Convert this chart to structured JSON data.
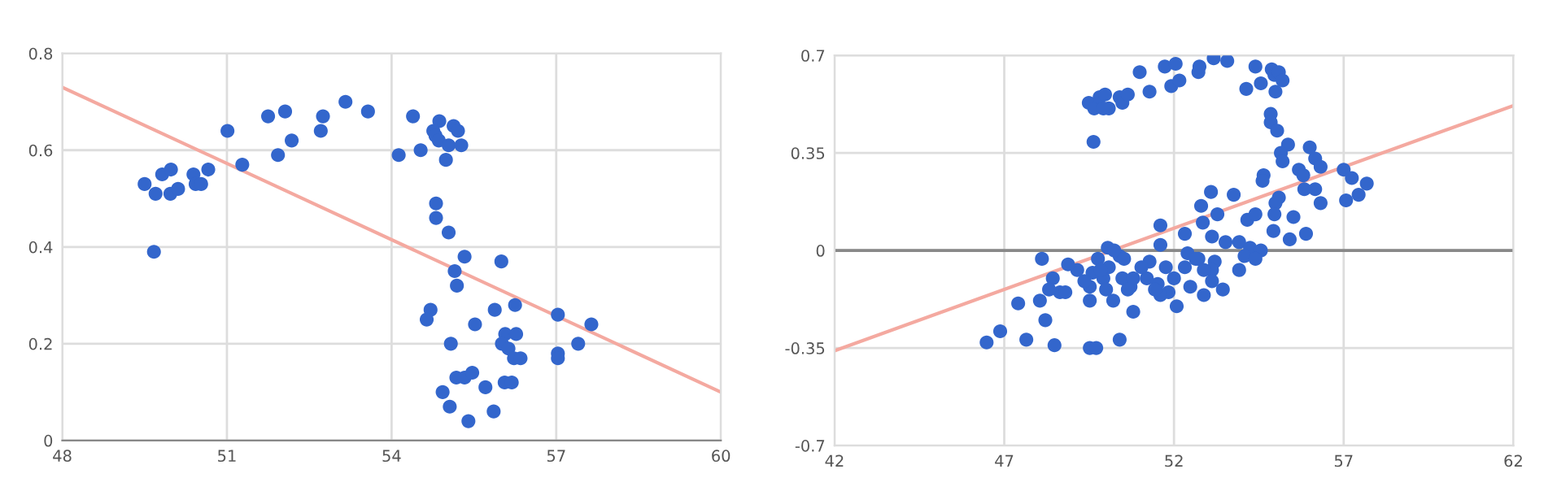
{
  "chart_data": [
    {
      "type": "scatter",
      "xlim": [
        48,
        60
      ],
      "xticks": [
        48,
        51,
        54,
        57,
        60
      ],
      "ylim": [
        0,
        0.8
      ],
      "yticks": [
        0,
        0.2,
        0.4,
        0.6,
        0.8
      ],
      "grid": true,
      "marker": "circle",
      "legend": false,
      "series": [
        {
          "color": "#3366cc",
          "x": [
            49.5,
            49.7,
            49.82,
            49.98,
            49.97,
            50.11,
            50.39,
            50.43,
            50.53,
            50.66,
            49.67,
            51.01,
            51.28,
            51.75,
            52.06,
            52.18,
            51.93,
            52.71,
            52.75,
            53.16,
            53.57,
            54.13,
            54.39,
            54.53,
            54.87,
            54.76,
            54.8,
            54.86,
            55.13,
            55.21,
            55.04,
            55.27,
            54.99,
            54.81,
            54.81,
            55.04,
            55.33,
            55.15,
            55.19,
            56.0,
            54.71,
            54.64,
            55.88,
            56.25,
            55.52,
            55.08,
            56.07,
            56.27,
            56.01,
            56.13,
            56.23,
            56.35,
            57.03,
            57.64,
            57.4,
            57.03,
            57.03,
            55.18,
            55.33,
            55.47,
            55.71,
            54.93,
            56.06,
            56.19,
            55.06,
            55.86,
            55.4
          ],
          "values": [
            0.53,
            0.51,
            0.55,
            0.56,
            0.51,
            0.52,
            0.55,
            0.53,
            0.53,
            0.56,
            0.39,
            0.64,
            0.57,
            0.67,
            0.68,
            0.62,
            0.59,
            0.64,
            0.67,
            0.7,
            0.68,
            0.59,
            0.67,
            0.6,
            0.66,
            0.64,
            0.63,
            0.62,
            0.65,
            0.64,
            0.61,
            0.61,
            0.58,
            0.49,
            0.46,
            0.43,
            0.38,
            0.35,
            0.32,
            0.37,
            0.27,
            0.25,
            0.27,
            0.28,
            0.24,
            0.2,
            0.22,
            0.22,
            0.2,
            0.19,
            0.17,
            0.17,
            0.26,
            0.24,
            0.2,
            0.18,
            0.17,
            0.13,
            0.13,
            0.14,
            0.11,
            0.1,
            0.12,
            0.12,
            0.07,
            0.06,
            0.04
          ]
        },
        {
          "type": "line",
          "color": "#f4a9a0",
          "marker": "none",
          "x": [
            48,
            60
          ],
          "values": [
            0.73,
            0.1
          ]
        }
      ]
    },
    {
      "type": "scatter",
      "xlim": [
        42,
        62
      ],
      "xticks": [
        42,
        47,
        52,
        57,
        62
      ],
      "ylim": [
        -0.7,
        0.7
      ],
      "yticks": [
        -0.7,
        -0.35,
        0,
        0.35,
        0.7
      ],
      "grid": true,
      "marker": "circle",
      "legend": false,
      "ref_lines": [
        {
          "axis": "y",
          "value": 0,
          "color": "#888888"
        }
      ],
      "series": [
        {
          "color": "#3366cc",
          "x": [
            49.49,
            49.65,
            49.81,
            49.97,
            50.08,
            49.92,
            50.4,
            50.48,
            50.64,
            49.63,
            50.99,
            51.28,
            51.73,
            52.05,
            51.92,
            52.16,
            52.72,
            52.75,
            53.17,
            53.57,
            54.13,
            54.4,
            54.56,
            54.88,
            54.96,
            55.09,
            55.2,
            54.99,
            54.85,
            54.85,
            55.04,
            55.36,
            55.15,
            55.2,
            56.0,
            56.16,
            56.32,
            55.68,
            55.81,
            57.0,
            57.24,
            57.68,
            57.44,
            57.07,
            56.32,
            56.16,
            55.84,
            55.09,
            54.99,
            55.52,
            55.89,
            55.41,
            54.93,
            54.64,
            54.61,
            54.16,
            54.4,
            54.96,
            53.76,
            53.09,
            53.28,
            52.8,
            52.85,
            53.12,
            52.32,
            51.6,
            51.6,
            53.52,
            53.92,
            54.24,
            54.08,
            54.56,
            54.4,
            53.92,
            53.2,
            53.12,
            53.44,
            53.12,
            52.88,
            52.72,
            52.4,
            52.32,
            52.48,
            52.08,
            52.0,
            51.76,
            51.84,
            51.52,
            51.6,
            51.28,
            51.2,
            51.04,
            50.72,
            50.8,
            50.48,
            50.4,
            50.05,
            50.24,
            50.53,
            50.08,
            49.92,
            49.76,
            49.6,
            49.52,
            49.36,
            49.52,
            49.84,
            50.0,
            50.21,
            49.15,
            48.88,
            48.64,
            48.8,
            48.43,
            48.32,
            48.11,
            48.05,
            48.21,
            47.41,
            46.88,
            46.48,
            47.65,
            48.48,
            49.52,
            49.71,
            50.4,
            50.8,
            50.64,
            51.44,
            52.64,
            52.88
          ],
          "values": [
            0.53,
            0.51,
            0.55,
            0.56,
            0.51,
            0.51,
            0.55,
            0.53,
            0.56,
            0.39,
            0.64,
            0.57,
            0.66,
            0.67,
            0.59,
            0.61,
            0.64,
            0.66,
            0.69,
            0.68,
            0.58,
            0.66,
            0.6,
            0.65,
            0.63,
            0.64,
            0.61,
            0.57,
            0.49,
            0.46,
            0.43,
            0.38,
            0.35,
            0.32,
            0.37,
            0.33,
            0.3,
            0.29,
            0.27,
            0.29,
            0.26,
            0.24,
            0.2,
            0.18,
            0.17,
            0.22,
            0.22,
            0.19,
            0.17,
            0.12,
            0.06,
            0.04,
            0.07,
            0.27,
            0.25,
            0.11,
            0.13,
            0.13,
            0.2,
            0.21,
            0.13,
            0.16,
            0.1,
            0.05,
            0.06,
            0.09,
            0.02,
            0.03,
            0.03,
            0.01,
            -0.02,
            0.0,
            -0.03,
            -0.07,
            -0.04,
            -0.07,
            -0.14,
            -0.11,
            -0.16,
            -0.03,
            -0.01,
            -0.06,
            -0.13,
            -0.2,
            -0.1,
            -0.06,
            -0.15,
            -0.12,
            -0.16,
            -0.04,
            -0.1,
            -0.06,
            -0.13,
            -0.22,
            -0.1,
            -0.02,
            0.01,
            0.0,
            -0.03,
            -0.06,
            -0.1,
            -0.03,
            -0.08,
            -0.13,
            -0.11,
            -0.18,
            -0.07,
            -0.14,
            -0.18,
            -0.07,
            -0.05,
            -0.15,
            -0.15,
            -0.1,
            -0.14,
            -0.03,
            -0.18,
            -0.25,
            -0.19,
            -0.29,
            -0.33,
            -0.32,
            -0.34,
            -0.35,
            -0.35,
            -0.32,
            -0.1,
            -0.14,
            -0.14,
            -0.03,
            -0.07
          ]
        },
        {
          "type": "line",
          "color": "#f4a9a0",
          "marker": "none",
          "x": [
            42,
            62
          ],
          "values": [
            -0.36,
            0.52
          ]
        }
      ]
    }
  ]
}
